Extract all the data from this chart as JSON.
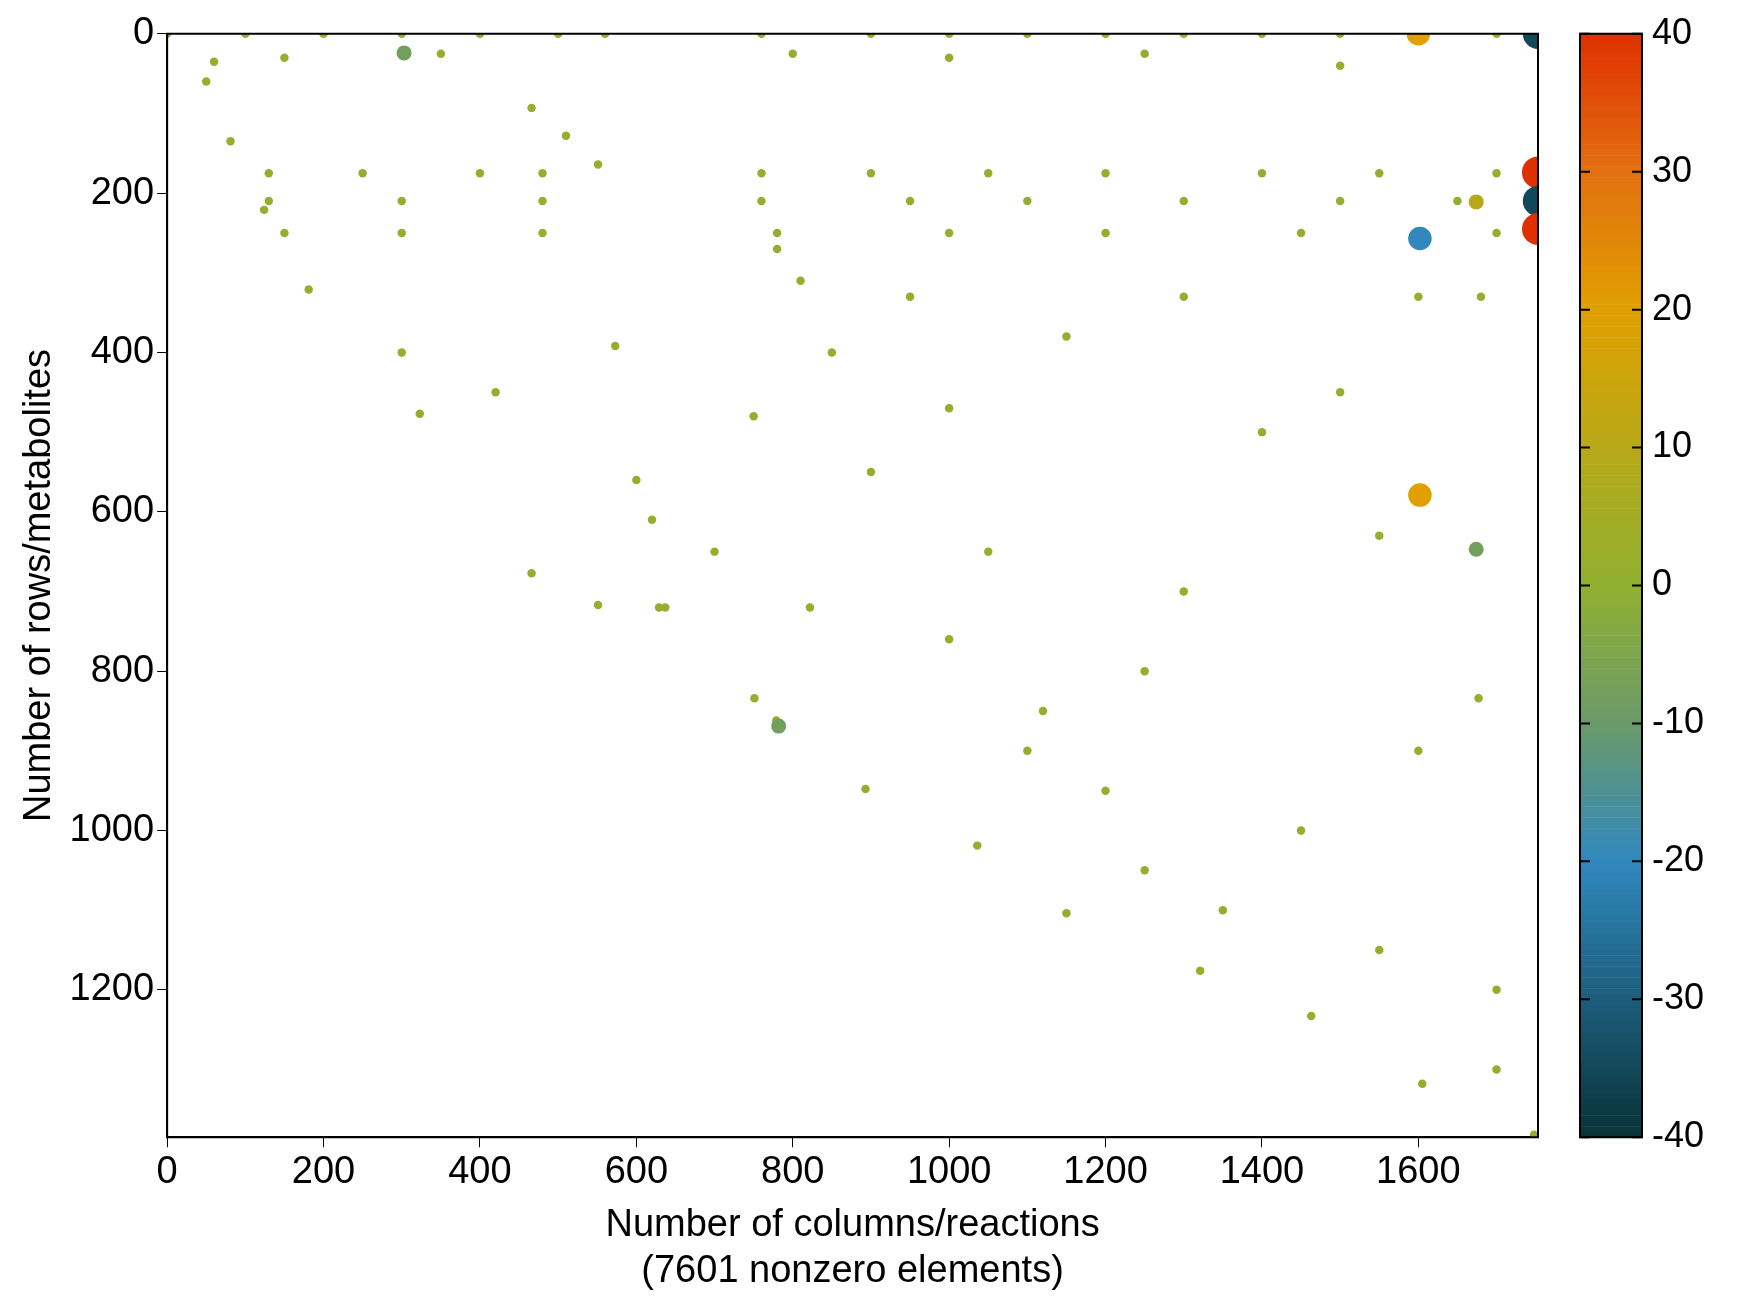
{
  "chart_data": {
    "type": "bubble",
    "xlabel": "Number of columns/reactions\n(7601 nonzero elements)",
    "ylabel": "Number of rows/metabolites",
    "xlim": [
      0,
      1753
    ],
    "xticks": [
      0,
      200,
      400,
      600,
      800,
      1000,
      1200,
      1400,
      1600
    ],
    "ylim": [
      1385,
      0
    ],
    "yticks": [
      0,
      200,
      400,
      600,
      800,
      1000,
      1200
    ],
    "clim": [
      -40,
      40
    ],
    "cticks": [
      -40,
      -30,
      -20,
      -10,
      0,
      10,
      20,
      30,
      40
    ],
    "grid": false,
    "legend": false,
    "marker": "circle",
    "series": [
      {
        "x": [
          0,
          100,
          200,
          300,
          400,
          500,
          560,
          760,
          900,
          1000,
          1100,
          1200,
          1300,
          1400,
          1500,
          1700,
          60,
          150,
          350,
          800,
          1000,
          1250,
          1500,
          50,
          81,
          124,
          181,
          323,
          466,
          551,
          637,
          751,
          779,
          893,
          1036,
          1150,
          1321,
          1463,
          1605,
          1748,
          130,
          250,
          400,
          480,
          760,
          900,
          1050,
          1200,
          1400,
          1550,
          1700,
          130,
          300,
          480,
          760,
          950,
          1100,
          1300,
          1500,
          1650,
          150,
          300,
          480,
          780,
          1000,
          1200,
          1450,
          1700,
          466,
          510,
          551,
          573,
          600,
          629,
          822,
          1000,
          1250,
          1677,
          780,
          810,
          300,
          420,
          620,
          700,
          850,
          950,
          1000,
          1150,
          1300,
          1400,
          1500,
          1550,
          1100,
          1200,
          1350,
          1450,
          1600,
          1700,
          1550,
          1250,
          1120,
          1700,
          900,
          1050,
          1300,
          750,
          1600,
          1680,
          1600,
          1753,
          1753,
          1753,
          1753,
          1602,
          1602,
          1674,
          1674,
          303,
          782
        ],
        "values": [
          0,
          0,
          0,
          0,
          0,
          0,
          0,
          0,
          0,
          0,
          0,
          0,
          0,
          0,
          0,
          0,
          35,
          30,
          25,
          25,
          30,
          25,
          40,
          60,
          135,
          221,
          321,
          477,
          677,
          717,
          720,
          834,
          862,
          948,
          1019,
          1104,
          1176,
          1233,
          1318,
          1382,
          175,
          175,
          175,
          175,
          175,
          175,
          175,
          175,
          175,
          175,
          175,
          210,
          210,
          210,
          210,
          210,
          210,
          210,
          210,
          210,
          250,
          250,
          250,
          250,
          250,
          250,
          250,
          250,
          93,
          128,
          164,
          392,
          560,
          720,
          720,
          760,
          800,
          834,
          270,
          310,
          400,
          450,
          610,
          650,
          400,
          330,
          470,
          380,
          330,
          500,
          450,
          630,
          900,
          950,
          1100,
          1000,
          900,
          1200,
          1150,
          1050,
          850,
          1300,
          550,
          650,
          700,
          480,
          330,
          330,
          0,
          0,
          174,
          210,
          245,
          257,
          579,
          647,
          211,
          24,
          869
        ],
        "cvalues": [
          1,
          1,
          1,
          1,
          1,
          1,
          1,
          1,
          1,
          1,
          1,
          1,
          1,
          1,
          1,
          1,
          1,
          1,
          1,
          1,
          1,
          1,
          1,
          1,
          1,
          1,
          1,
          1,
          1,
          1,
          1,
          1,
          1,
          1,
          1,
          1,
          1,
          1,
          1,
          1,
          1,
          1,
          1,
          1,
          1,
          1,
          1,
          1,
          1,
          1,
          1,
          1,
          1,
          1,
          1,
          1,
          1,
          1,
          1,
          1,
          1,
          1,
          1,
          1,
          1,
          1,
          1,
          1,
          1,
          1,
          1,
          1,
          1,
          1,
          1,
          1,
          1,
          1,
          1,
          1,
          1,
          1,
          1,
          1,
          1,
          1,
          1,
          1,
          1,
          1,
          1,
          1,
          1,
          1,
          1,
          1,
          1,
          1,
          1,
          1,
          1,
          1,
          1,
          1,
          1,
          1,
          1,
          1,
          20,
          -35,
          40,
          -35,
          40,
          -20,
          20,
          -8,
          10,
          -8,
          -8
        ],
        "sizes": [
          0.07,
          0.07,
          0.07,
          0.07,
          0.07,
          0.07,
          0.07,
          0.07,
          0.07,
          0.07,
          0.07,
          0.07,
          0.07,
          0.07,
          0.07,
          0.07,
          0.07,
          0.07,
          0.07,
          0.07,
          0.07,
          0.07,
          0.07,
          0.07,
          0.07,
          0.07,
          0.07,
          0.07,
          0.07,
          0.07,
          0.07,
          0.07,
          0.07,
          0.07,
          0.07,
          0.07,
          0.07,
          0.07,
          0.07,
          0.07,
          0.07,
          0.07,
          0.07,
          0.07,
          0.07,
          0.07,
          0.07,
          0.07,
          0.07,
          0.07,
          0.07,
          0.07,
          0.07,
          0.07,
          0.07,
          0.07,
          0.07,
          0.07,
          0.07,
          0.07,
          0.07,
          0.07,
          0.07,
          0.07,
          0.07,
          0.07,
          0.07,
          0.07,
          0.07,
          0.07,
          0.07,
          0.07,
          0.07,
          0.07,
          0.07,
          0.07,
          0.07,
          0.07,
          0.07,
          0.07,
          0.07,
          0.07,
          0.07,
          0.07,
          0.07,
          0.07,
          0.07,
          0.07,
          0.07,
          0.07,
          0.07,
          0.07,
          0.07,
          0.07,
          0.07,
          0.07,
          0.07,
          0.07,
          0.07,
          0.07,
          0.07,
          0.07,
          0.07,
          0.07,
          0.07,
          0.07,
          0.07,
          0.07,
          0.54,
          0.9,
          1,
          0.9,
          1,
          0.54,
          0.54,
          0.22,
          0.22,
          0.22,
          0.22
        ]
      }
    ]
  }
}
